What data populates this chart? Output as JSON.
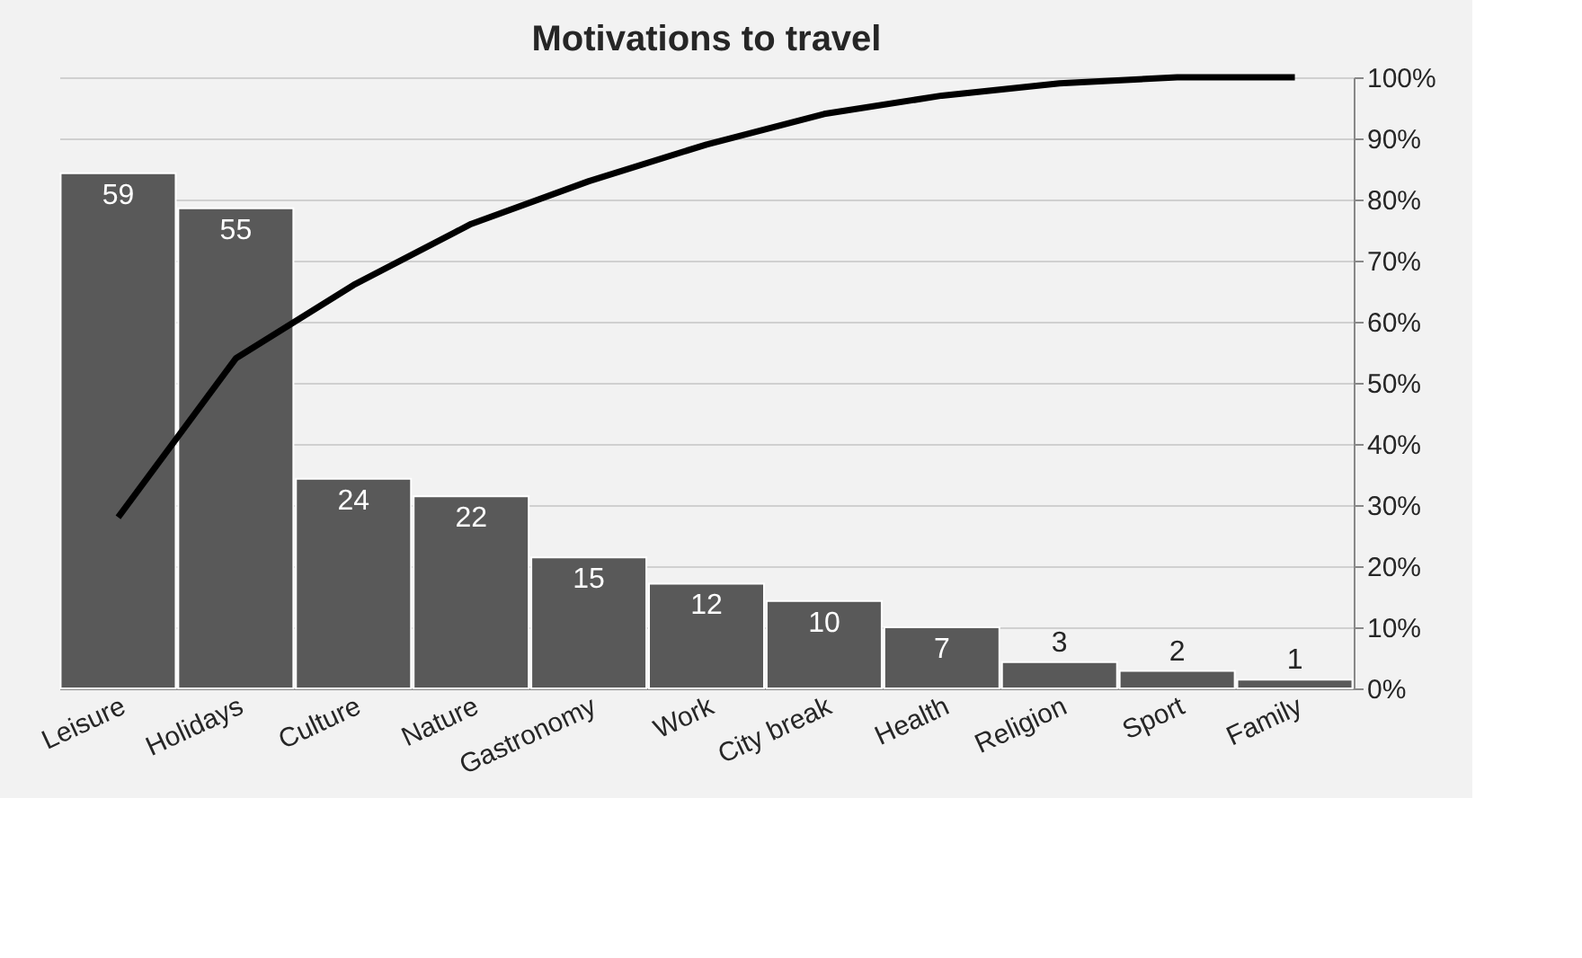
{
  "chart_data": {
    "type": "bar",
    "title": "Motivations to travel",
    "categories": [
      "Leisure",
      "Holidays",
      "Culture",
      "Nature",
      "Gastronomy",
      "Work",
      "City break",
      "Health",
      "Religion",
      "Sport",
      "Family"
    ],
    "series": [
      {
        "color": "#595959",
        "values": [
          59,
          55,
          24,
          22,
          15,
          12,
          10,
          7,
          3,
          2,
          1
        ],
        "value_labels": [
          "59",
          "55",
          "24",
          "22",
          "15",
          "12",
          "10",
          "7",
          "3",
          "2",
          "1"
        ]
      },
      {
        "type": "line",
        "axis": "y2",
        "color": "#000000",
        "values": [
          28,
          54,
          66,
          76,
          83,
          89,
          94,
          97,
          99,
          100,
          100
        ]
      }
    ],
    "ylim": [
      0,
      70
    ],
    "y2lim": [
      0,
      100
    ],
    "y2ticks": [
      {
        "value": 0,
        "label": "0%"
      },
      {
        "value": 10,
        "label": "10%"
      },
      {
        "value": 20,
        "label": "20%"
      },
      {
        "value": 30,
        "label": "30%"
      },
      {
        "value": 40,
        "label": "40%"
      },
      {
        "value": 50,
        "label": "50%"
      },
      {
        "value": 60,
        "label": "60%"
      },
      {
        "value": 70,
        "label": "70%"
      },
      {
        "value": 80,
        "label": "80%"
      },
      {
        "value": 90,
        "label": "90%"
      },
      {
        "value": 100,
        "label": "100%"
      }
    ],
    "grid": "y",
    "line_style": "solid",
    "marker": "none"
  }
}
